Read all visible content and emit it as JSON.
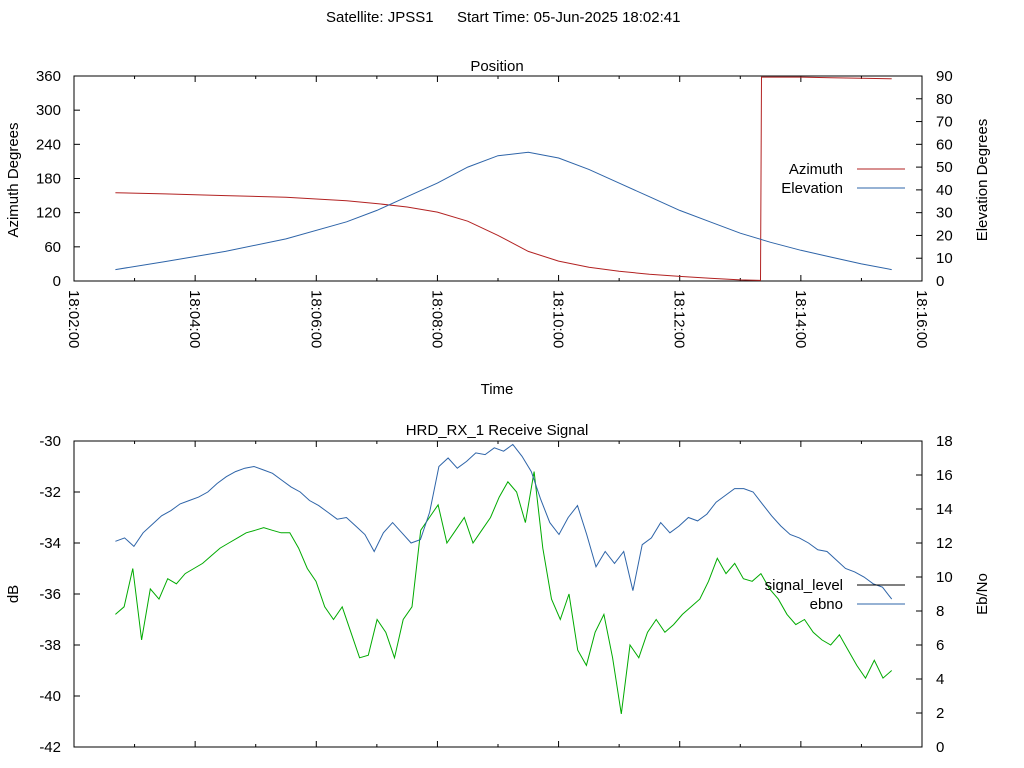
{
  "header": {
    "satellite": "Satellite: JPSS1",
    "start_time": "Start Time: 05-Jun-2025 18:02:41"
  },
  "colors": {
    "azimuth": "#b22222",
    "elevation": "#2e64a8",
    "signal_level": "#00aa00",
    "ebno": "#2e64a8",
    "frame": "#000000"
  },
  "chart_data": [
    {
      "type": "line",
      "title": "Position",
      "xlabel": "Time",
      "ylabel": "Azimuth Degrees",
      "y2label": "Elevation Degrees",
      "xlim": [
        "18:02:00",
        "18:16:00"
      ],
      "ylim": [
        0,
        360
      ],
      "y2lim": [
        0,
        90
      ],
      "x_ticks": [
        "18:02:00",
        "18:04:00",
        "18:06:00",
        "18:08:00",
        "18:10:00",
        "18:12:00",
        "18:14:00",
        "18:16:00"
      ],
      "y_ticks": [
        "0",
        "60",
        "120",
        "180",
        "240",
        "300",
        "360"
      ],
      "y2_ticks": [
        "0",
        "10",
        "20",
        "30",
        "40",
        "50",
        "60",
        "70",
        "80",
        "90"
      ],
      "legend_position": "right",
      "series": [
        {
          "name": "Azimuth",
          "axis": "y",
          "x": [
            "18:02:41",
            "18:03:30",
            "18:04:30",
            "18:05:30",
            "18:06:30",
            "18:07:00",
            "18:07:30",
            "18:08:00",
            "18:08:30",
            "18:09:00",
            "18:09:30",
            "18:10:00",
            "18:10:30",
            "18:11:00",
            "18:11:30",
            "18:12:00",
            "18:12:30",
            "18:13:00",
            "18:13:20",
            "18:13:21",
            "18:13:30",
            "18:14:00",
            "18:14:30",
            "18:15:00",
            "18:15:30"
          ],
          "values": [
            155,
            153,
            150,
            147,
            141,
            136,
            130,
            121,
            105,
            80,
            52,
            35,
            24,
            17,
            12,
            8,
            5,
            2,
            1,
            358,
            358,
            358,
            357,
            356,
            355
          ]
        },
        {
          "name": "Elevation",
          "axis": "y2",
          "x": [
            "18:02:41",
            "18:03:30",
            "18:04:30",
            "18:05:30",
            "18:06:30",
            "18:07:00",
            "18:07:30",
            "18:08:00",
            "18:08:30",
            "18:09:00",
            "18:09:30",
            "18:10:00",
            "18:10:30",
            "18:11:00",
            "18:11:30",
            "18:12:00",
            "18:12:30",
            "18:13:00",
            "18:13:30",
            "18:14:00",
            "18:14:30",
            "18:15:00",
            "18:15:30"
          ],
          "values": [
            5,
            8.5,
            13,
            18.5,
            26,
            31,
            37,
            43,
            50,
            55,
            56.5,
            54,
            49,
            43,
            37,
            31,
            26,
            21,
            17,
            13.5,
            10.5,
            7.5,
            5
          ]
        }
      ]
    },
    {
      "type": "line",
      "title": "HRD_RX_1 Receive Signal",
      "ylabel": "dB",
      "y2label": "Eb/No",
      "ylim": [
        -42,
        -30
      ],
      "y2lim": [
        0,
        18
      ],
      "y_ticks": [
        "-30",
        "-32",
        "-34",
        "-36",
        "-38",
        "-40",
        "-42"
      ],
      "y2_ticks": [
        "0",
        "2",
        "4",
        "6",
        "8",
        "10",
        "12",
        "14",
        "16",
        "18"
      ],
      "legend_position": "right",
      "series": [
        {
          "name": "signal_level",
          "axis": "y",
          "values": [
            -36.8,
            -36.5,
            -35,
            -37.8,
            -35.8,
            -36.2,
            -35.4,
            -35.6,
            -35.2,
            -35.0,
            -34.8,
            -34.5,
            -34.2,
            -34.0,
            -33.8,
            -33.6,
            -33.5,
            -33.4,
            -33.5,
            -33.6,
            -33.6,
            -34.2,
            -35.0,
            -35.5,
            -36.5,
            -37.0,
            -36.5,
            -37.5,
            -38.5,
            -38.4,
            -37.0,
            -37.5,
            -38.5,
            -37.0,
            -36.5,
            -33.5,
            -33.0,
            -32.5,
            -34.0,
            -33.5,
            -33.0,
            -34.0,
            -33.5,
            -33.0,
            -32.2,
            -31.6,
            -32.0,
            -33.2,
            -31.2,
            -34.2,
            -36.2,
            -37.0,
            -36.0,
            -38.2,
            -38.8,
            -37.5,
            -36.8,
            -38.5,
            -40.7,
            -38.0,
            -38.5,
            -37.5,
            -37.0,
            -37.5,
            -37.2,
            -36.8,
            -36.5,
            -36.2,
            -35.5,
            -34.6,
            -35.2,
            -34.8,
            -35.4,
            -35.5,
            -35.2,
            -35.8,
            -36.2,
            -36.8,
            -37.2,
            -37.0,
            -37.5,
            -37.8,
            -38.0,
            -37.6,
            -38.2,
            -38.8,
            -39.3,
            -38.6,
            -39.3,
            -39.0
          ]
        },
        {
          "name": "ebno",
          "axis": "y2",
          "values": [
            12.1,
            12.3,
            11.8,
            12.6,
            13.1,
            13.6,
            13.9,
            14.3,
            14.5,
            14.7,
            15.0,
            15.5,
            15.9,
            16.2,
            16.4,
            16.5,
            16.3,
            16.1,
            15.7,
            15.3,
            15.0,
            14.5,
            14.2,
            13.8,
            13.4,
            13.5,
            13.0,
            12.5,
            11.5,
            12.6,
            13.2,
            12.6,
            12.0,
            12.2,
            13.8,
            16.5,
            17.0,
            16.4,
            16.8,
            17.3,
            17.2,
            17.6,
            17.4,
            17.8,
            17.1,
            16.2,
            14.6,
            13.2,
            12.5,
            13.5,
            14.2,
            12.5,
            10.6,
            11.5,
            10.8,
            11.5,
            9.2,
            11.9,
            12.3,
            13.2,
            12.6,
            13.0,
            13.5,
            13.3,
            13.7,
            14.4,
            14.8,
            15.2,
            15.2,
            15.0,
            14.3,
            13.6,
            13.0,
            12.5,
            12.3,
            12.0,
            11.6,
            11.5,
            11.0,
            10.5,
            10.3,
            10.0,
            9.6,
            9.4,
            8.7
          ]
        }
      ]
    }
  ]
}
